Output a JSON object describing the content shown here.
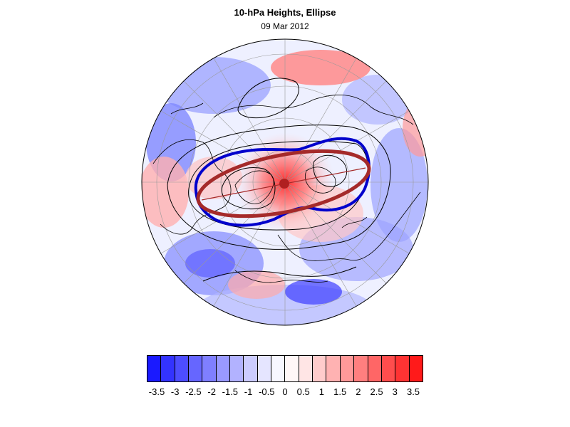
{
  "title": "10-hPa Heights, Ellipse",
  "subtitle": "09 Mar 2012",
  "colors": {
    "ellipse": "#a52a2a",
    "height_contour_blue": "#0000cc",
    "contour": "#000000",
    "coast": "#000000"
  },
  "colorbar": {
    "colors": [
      "#1a1aff",
      "#3333ff",
      "#4d4dff",
      "#6666ff",
      "#7f7fff",
      "#9999ff",
      "#b2b2ff",
      "#ccccff",
      "#e5e5ff",
      "#f7f7ff",
      "#fff7f7",
      "#ffe5e5",
      "#ffcccc",
      "#ffb2b2",
      "#ff9999",
      "#ff7f7f",
      "#ff6666",
      "#ff4d4d",
      "#ff3333",
      "#ff1a1a"
    ],
    "labels": [
      "-3.5",
      "-3",
      "-2.5",
      "-2",
      "-1.5",
      "-1",
      "-0.5",
      "0",
      "0.5",
      "1",
      "1.5",
      "2",
      "2.5",
      "3",
      "3.5"
    ]
  }
}
